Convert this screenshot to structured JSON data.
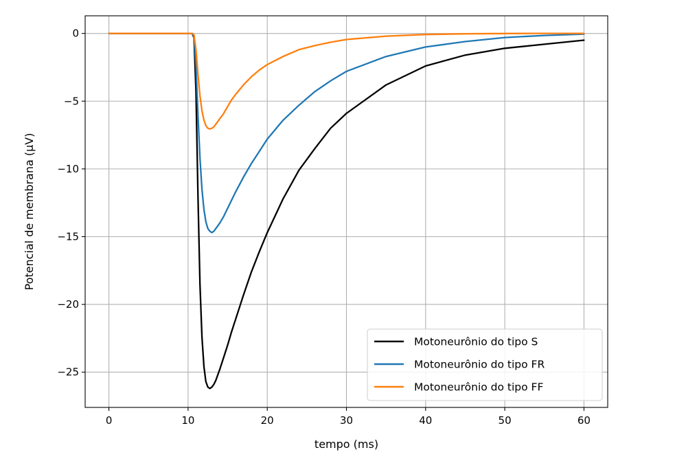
{
  "chart_data": {
    "type": "line",
    "xlabel": "tempo (ms)",
    "ylabel": "Potencial de membrana (μV)",
    "xlim": [
      -3,
      63
    ],
    "ylim": [
      -27.6,
      1.3
    ],
    "xticks": [
      0,
      10,
      20,
      30,
      40,
      50,
      60
    ],
    "yticks": [
      0,
      -5,
      -10,
      -15,
      -20,
      -25
    ],
    "xtick_labels": [
      "0",
      "10",
      "20",
      "30",
      "40",
      "50",
      "60"
    ],
    "ytick_labels": [
      "0",
      "−5",
      "−10",
      "−15",
      "−20",
      "−25"
    ],
    "grid": true,
    "legend_position": "lower-right",
    "series": [
      {
        "name": "Motoneurônio do tipo S",
        "color": "#000000",
        "x": [
          0,
          10.5,
          10.75,
          11.0,
          11.25,
          11.5,
          11.75,
          12.0,
          12.25,
          12.5,
          12.75,
          13.0,
          13.25,
          13.5,
          13.75,
          14.0,
          14.5,
          15.0,
          15.5,
          16.0,
          17.0,
          18.0,
          19.0,
          20.0,
          22.0,
          24.0,
          26.0,
          28.0,
          30.0,
          35.0,
          40.0,
          45.0,
          50.0,
          55.0,
          60.0
        ],
        "y": [
          0,
          0,
          -0.3,
          -4.3,
          -12.0,
          -18.5,
          -22.4,
          -24.6,
          -25.7,
          -26.1,
          -26.2,
          -26.1,
          -25.9,
          -25.6,
          -25.2,
          -24.8,
          -23.9,
          -23.0,
          -22.0,
          -21.1,
          -19.3,
          -17.6,
          -16.1,
          -14.7,
          -12.2,
          -10.1,
          -8.5,
          -7.0,
          -5.9,
          -3.8,
          -2.4,
          -1.6,
          -1.1,
          -0.8,
          -0.5
        ]
      },
      {
        "name": "Motoneurônio do tipo FR",
        "color": "#1f77b4",
        "x": [
          0,
          10.5,
          10.75,
          11.0,
          11.25,
          11.5,
          11.75,
          12.0,
          12.25,
          12.5,
          12.75,
          13.0,
          13.25,
          13.5,
          14.0,
          14.5,
          15.0,
          15.5,
          16.0,
          17.0,
          18.0,
          19.0,
          20.0,
          22.0,
          24.0,
          26.0,
          28.0,
          30.0,
          35.0,
          40.0,
          45.0,
          50.0,
          55.0,
          60.0
        ],
        "y": [
          0,
          0,
          -0.2,
          -2.4,
          -6.0,
          -9.2,
          -11.5,
          -13.0,
          -13.9,
          -14.4,
          -14.6,
          -14.7,
          -14.6,
          -14.4,
          -14.0,
          -13.5,
          -12.9,
          -12.3,
          -11.7,
          -10.6,
          -9.6,
          -8.7,
          -7.8,
          -6.4,
          -5.3,
          -4.3,
          -3.5,
          -2.8,
          -1.7,
          -1.0,
          -0.6,
          -0.3,
          -0.15,
          -0.05
        ]
      },
      {
        "name": "Motoneurônio do tipo FF",
        "color": "#ff7f0e",
        "x": [
          0,
          10.5,
          10.75,
          11.0,
          11.25,
          11.5,
          11.75,
          12.0,
          12.25,
          12.5,
          12.75,
          13.0,
          13.25,
          13.5,
          14.0,
          14.5,
          15.0,
          15.5,
          16.0,
          17.0,
          18.0,
          19.0,
          20.0,
          22.0,
          24.0,
          26.0,
          28.0,
          30.0,
          35.0,
          40.0,
          45.0,
          50.0,
          55.0,
          60.0
        ],
        "y": [
          0,
          0,
          -0.1,
          -1.2,
          -3.0,
          -4.6,
          -5.7,
          -6.4,
          -6.8,
          -7.0,
          -7.05,
          -7.0,
          -6.9,
          -6.7,
          -6.3,
          -5.9,
          -5.4,
          -4.9,
          -4.5,
          -3.8,
          -3.2,
          -2.7,
          -2.3,
          -1.7,
          -1.2,
          -0.9,
          -0.65,
          -0.45,
          -0.2,
          -0.08,
          -0.03,
          -0.01,
          0,
          0
        ]
      }
    ]
  }
}
